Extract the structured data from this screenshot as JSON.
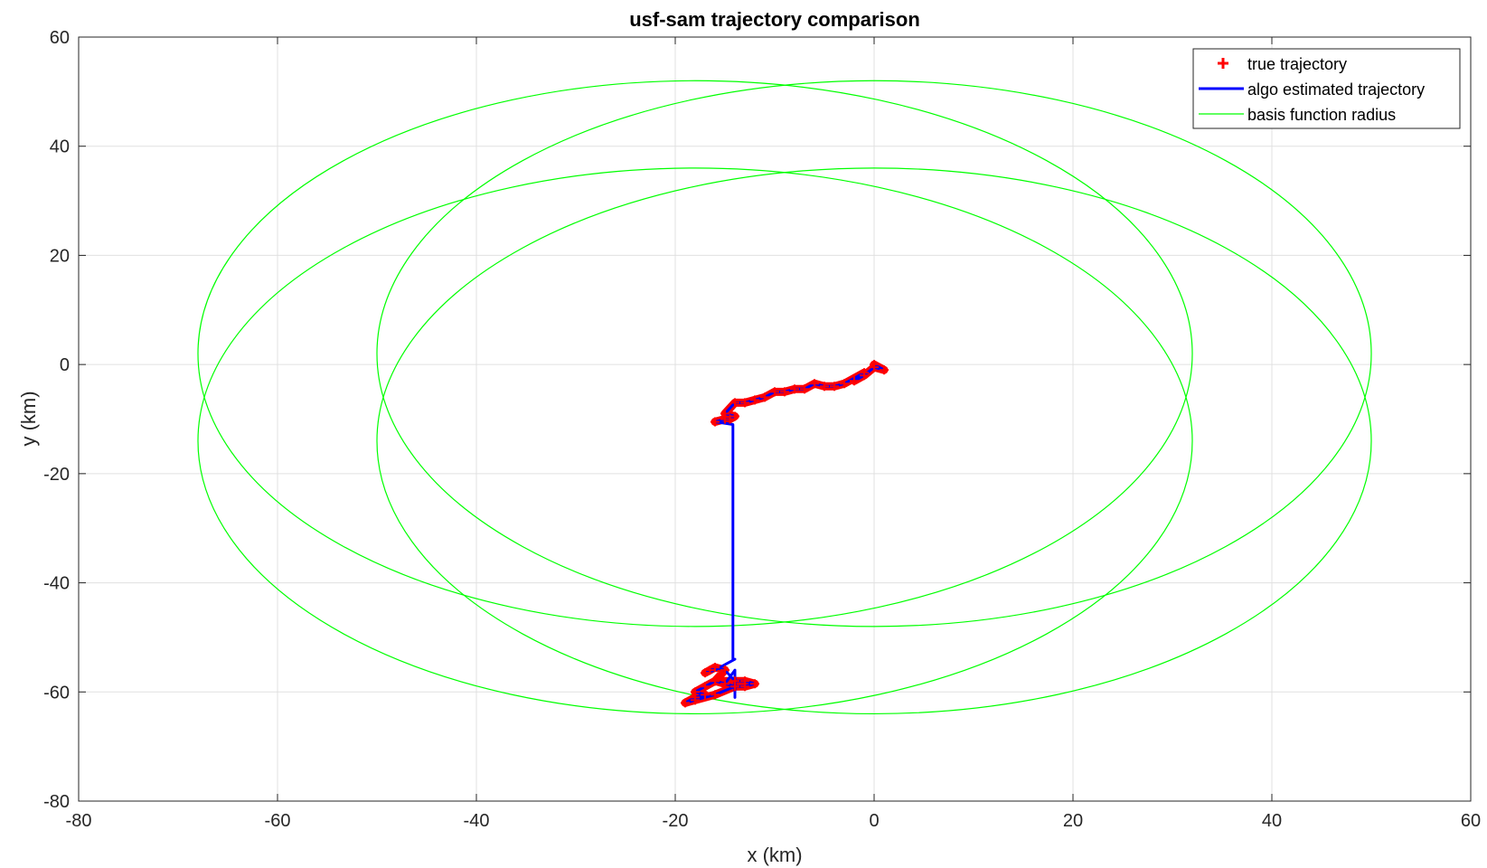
{
  "chart_data": {
    "type": "line",
    "title": "usf-sam trajectory comparison",
    "xlabel": "x (km)",
    "ylabel": "y (km)",
    "xlim": [
      -80,
      60
    ],
    "ylim": [
      -80,
      60
    ],
    "x_ticks": [
      -80,
      -60,
      -40,
      -20,
      0,
      20,
      40,
      60
    ],
    "y_ticks": [
      -80,
      -60,
      -40,
      -20,
      0,
      20,
      40,
      60
    ],
    "x_tick_labels": [
      "-80",
      "-60",
      "-40",
      "-20",
      "0",
      "20",
      "40",
      "60"
    ],
    "y_tick_labels": [
      "-80",
      "-60",
      "-40",
      "-20",
      "0",
      "20",
      "40",
      "60"
    ],
    "grid": true,
    "legend_position": "top-right",
    "legend": [
      "true trajectory",
      "algo estimated trajectory",
      "basis function radius"
    ],
    "colors": {
      "true_trajectory": "#ff0000",
      "estimated_trajectory": "#0000ff",
      "basis_radius": "#00ff00",
      "grid": "#e0e0e0",
      "axes": "#262626"
    },
    "series": [
      {
        "name": "true trajectory",
        "marker": "+",
        "x": [
          0,
          1,
          0,
          -1,
          -2,
          -1,
          -3,
          -4,
          -5,
          -6,
          -7,
          -8,
          -9,
          -10,
          -11,
          -12,
          -13,
          -14,
          -15,
          -14,
          -14.5,
          -15,
          -16,
          -16.5,
          -17,
          -16,
          -15,
          -16,
          -14,
          -13,
          -12,
          -13,
          -14,
          -15,
          -16,
          -17,
          -18,
          -17,
          -18,
          -19,
          -18,
          -16,
          -14,
          -15
        ],
        "y": [
          0,
          -1,
          -0.5,
          -2,
          -3,
          -1.5,
          -3.5,
          -4,
          -4,
          -3.5,
          -4.5,
          -4.5,
          -5,
          -5,
          -6,
          -6.5,
          -7,
          -7,
          -9,
          -9.5,
          -10,
          -10,
          -10.5,
          -56,
          -56.5,
          -55.5,
          -56,
          -58,
          -58,
          -58,
          -58.5,
          -59,
          -59,
          -58.5,
          -58,
          -59,
          -60,
          -60.5,
          -61,
          -62,
          -61.5,
          -60.5,
          -59,
          -58.5
        ]
      },
      {
        "name": "algo estimated trajectory",
        "x": [
          0,
          1,
          0,
          -1,
          -2,
          -1,
          -3,
          -4,
          -5,
          -6,
          -7,
          -8,
          -9,
          -10,
          -11,
          -12,
          -13,
          -14,
          -15,
          -14,
          -14.5,
          -15,
          -16,
          -14.2,
          -14.2,
          -14.2,
          -14,
          -15,
          -16,
          -17,
          -16,
          -15,
          -14,
          -13,
          -12,
          -13,
          -14,
          -15,
          -16,
          -17,
          -18,
          -17,
          -18,
          -19,
          -18,
          -16,
          -14,
          -14,
          -14,
          -15
        ],
        "y": [
          0,
          -1,
          -0.5,
          -2,
          -3,
          -1.5,
          -3.5,
          -4,
          -4,
          -3.5,
          -4.5,
          -4.5,
          -5,
          -5,
          -6,
          -6.5,
          -7,
          -7,
          -9,
          -9.5,
          -10,
          -10,
          -10.5,
          -11,
          -35,
          -54,
          -54,
          -55,
          -56,
          -56.5,
          -55.5,
          -56,
          -58,
          -58,
          -58.5,
          -59,
          -59,
          -58.5,
          -58,
          -59,
          -60,
          -60.5,
          -61,
          -62,
          -61.5,
          -60.5,
          -59,
          -61,
          -56,
          -58.5
        ]
      },
      {
        "name": "basis function radius",
        "ellipses": [
          {
            "cx": -18,
            "cy": 2,
            "rx": 50,
            "ry": 50
          },
          {
            "cx": 0,
            "cy": 2,
            "rx": 50,
            "ry": 50
          },
          {
            "cx": -18,
            "cy": -14,
            "rx": 50,
            "ry": 50
          },
          {
            "cx": 0,
            "cy": -14,
            "rx": 50,
            "ry": 50
          }
        ]
      }
    ]
  }
}
